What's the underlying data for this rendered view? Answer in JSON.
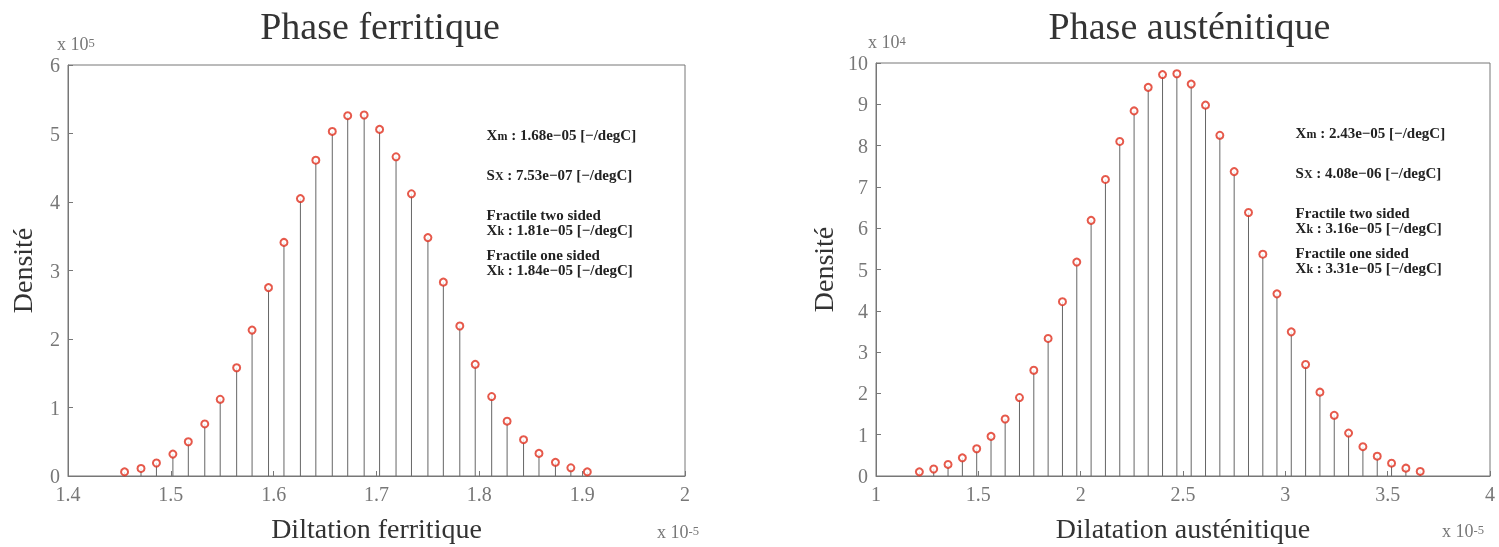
{
  "chart_data": [
    {
      "type": "lollipop",
      "title": "Phase ferritique",
      "xlabel": "Diltation ferritique",
      "ylabel": "Densité",
      "marker": "circle",
      "grid": false,
      "x": [
        1.455,
        1.471,
        1.486,
        1.502,
        1.517,
        1.533,
        1.548,
        1.564,
        1.579,
        1.595,
        1.61,
        1.626,
        1.641,
        1.657,
        1.672,
        1.688,
        1.703,
        1.719,
        1.734,
        1.75,
        1.765,
        1.781,
        1.796,
        1.812,
        1.827,
        1.843,
        1.858,
        1.874,
        1.889,
        1.905
      ],
      "series": [
        {
          "color": "#e0301e",
          "values": [
            0.06,
            0.11,
            0.19,
            0.32,
            0.5,
            0.76,
            1.12,
            1.58,
            2.13,
            2.75,
            3.41,
            4.05,
            4.61,
            5.03,
            5.26,
            5.27,
            5.06,
            4.66,
            4.12,
            3.48,
            2.83,
            2.19,
            1.63,
            1.16,
            0.8,
            0.53,
            0.33,
            0.2,
            0.12,
            0.06
          ]
        }
      ],
      "xlim": [
        1.4,
        2
      ],
      "xticks": [
        1.4,
        1.5,
        1.6,
        1.7,
        1.8,
        1.9,
        2
      ],
      "ylim": [
        0,
        6
      ],
      "yticks": [
        0,
        1,
        2,
        3,
        4,
        5,
        6
      ],
      "annotations": [
        "x 10$^{5}$",
        "x 10$^{-5}$",
        "X$_{m}$ : 1.68e−05 [−/degC]",
        "S$_{X}$ : 7.53e−07 [−/degC]",
        "Fractile two sided\nX$_{k}$ : 1.81e−05 [−/degC]",
        "Fractile one sided\nX$_{k}$ : 1.84e−05 [−/degC]"
      ]
    },
    {
      "type": "lollipop",
      "title": "Phase austénitique",
      "xlabel": "Dilatation austénitique",
      "ylabel": "Densité",
      "marker": "circle",
      "grid": false,
      "x": [
        1.212,
        1.282,
        1.352,
        1.422,
        1.492,
        1.562,
        1.631,
        1.701,
        1.771,
        1.841,
        1.911,
        1.981,
        2.051,
        2.121,
        2.191,
        2.261,
        2.33,
        2.4,
        2.47,
        2.54,
        2.61,
        2.68,
        2.75,
        2.82,
        2.89,
        2.959,
        3.029,
        3.099,
        3.169,
        3.239,
        3.309,
        3.379,
        3.449,
        3.519,
        3.589,
        3.659
      ],
      "series": [
        {
          "color": "#e0301e",
          "values": [
            0.1,
            0.17,
            0.28,
            0.44,
            0.66,
            0.96,
            1.38,
            1.9,
            2.56,
            3.33,
            4.22,
            5.18,
            6.19,
            7.18,
            8.1,
            8.84,
            9.41,
            9.72,
            9.74,
            9.49,
            8.98,
            8.25,
            7.37,
            6.38,
            5.37,
            4.41,
            3.49,
            2.7,
            2.03,
            1.47,
            1.04,
            0.71,
            0.48,
            0.31,
            0.19,
            0.11
          ]
        }
      ],
      "xlim": [
        1,
        4
      ],
      "xticks": [
        1,
        1.5,
        2,
        2.5,
        3,
        3.5,
        4
      ],
      "ylim": [
        0,
        10
      ],
      "yticks": [
        0,
        1,
        2,
        3,
        4,
        5,
        6,
        7,
        8,
        9,
        10
      ],
      "annotations": [
        "x 10$^{4}$",
        "x 10$^{-5}$",
        "X$_{m}$ : 2.43e−05 [−/degC]",
        "S$_{X}$ : 4.08e−06 [−/degC]",
        "Fractile two sided\nX$_{k}$ : 3.16e−05 [−/degC]",
        "Fractile one sided\nX$_{k}$ : 3.31e−05 [−/degC]"
      ]
    }
  ]
}
